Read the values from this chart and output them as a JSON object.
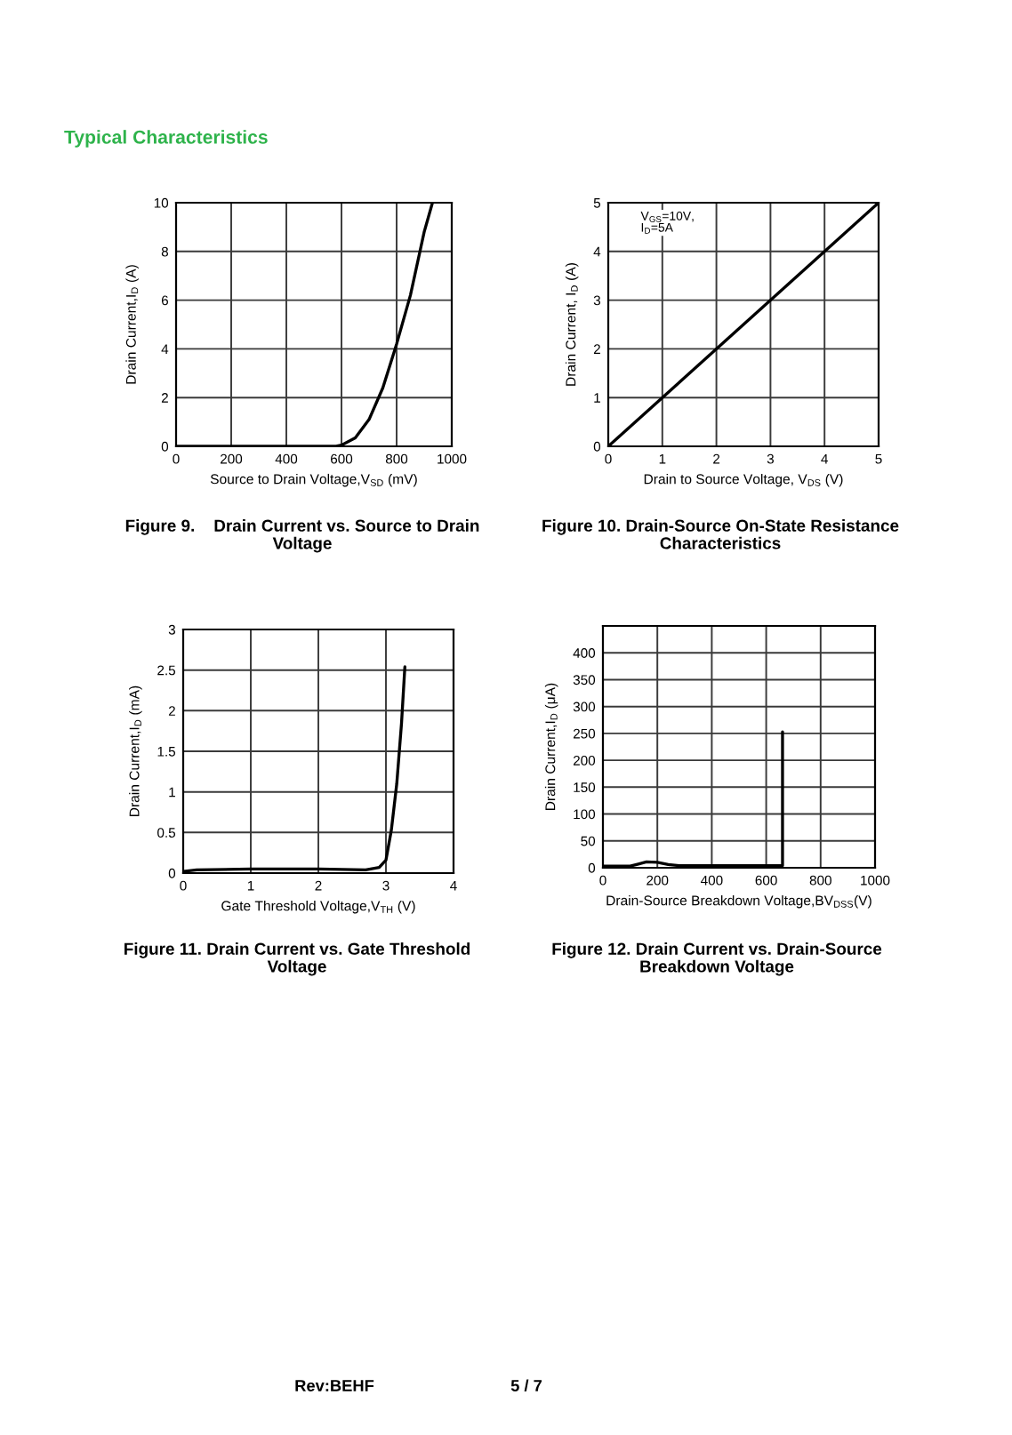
{
  "chart_data": [
    {
      "type": "line",
      "title": "Figure 9.    Drain Current vs. Source to Drain Voltage",
      "xlabel": "Source to Drain Voltage,V$_{SD}$ (mV)",
      "ylabel": "Drain Current,I$_{D}$ (A)",
      "annotations": [
        "Typical Characteristics"
      ],
      "x": [
        0,
        100,
        200,
        300,
        400,
        500,
        580,
        600,
        650,
        700,
        750,
        800,
        850,
        900,
        930
      ],
      "series": [
        {
          "color": "#000000",
          "values": [
            0,
            0,
            0,
            0,
            0,
            0,
            0,
            0.05,
            0.35,
            1.1,
            2.4,
            4.2,
            6.2,
            8.8,
            10
          ]
        }
      ],
      "xlim": [
        0,
        1000
      ],
      "ylim": [
        0,
        10
      ],
      "xticks": [
        0,
        200,
        400,
        600,
        800,
        1000
      ],
      "yticks": [
        0,
        2,
        4,
        6,
        8,
        10
      ],
      "grid": true
    },
    {
      "type": "line",
      "title": "Figure 10. Drain-Source On-State Resistance Characteristics",
      "xlabel": "Drain to Source Voltage, V$_{DS}$ (V)",
      "ylabel": "Drain Current, I$_{D}$ (A)",
      "annotations": [
        "V$_{GS}$=10V, I$_{D}$=5A"
      ],
      "x": [
        0,
        5
      ],
      "series": [
        {
          "color": "#000000",
          "values": [
            0,
            5
          ]
        }
      ],
      "xlim": [
        0,
        5
      ],
      "ylim": [
        0,
        5
      ],
      "xticks": [
        0,
        1,
        2,
        3,
        4,
        5
      ],
      "yticks": [
        0,
        1,
        2,
        3,
        4,
        5
      ],
      "grid": true
    },
    {
      "type": "line",
      "title": "Figure 11. Drain Current vs. Gate Threshold Voltage",
      "xlabel": "Gate Threshold Voltage,V$_{TH}$ (V)",
      "ylabel": "Drain Current,I$_{D}$ (mA)",
      "x": [
        0,
        0.2,
        1,
        2,
        2.7,
        2.9,
        3.0,
        3.08,
        3.16,
        3.23,
        3.28
      ],
      "series": [
        {
          "color": "#000000",
          "values": [
            0.02,
            0.04,
            0.05,
            0.05,
            0.04,
            0.07,
            0.16,
            0.53,
            1.1,
            1.84,
            2.54
          ]
        }
      ],
      "xlim": [
        0,
        4
      ],
      "ylim": [
        0,
        3
      ],
      "xticks": [
        0,
        1,
        2,
        3,
        4
      ],
      "yticks": [
        0,
        0.5,
        1,
        1.5,
        2,
        2.5,
        3
      ],
      "grid": true
    },
    {
      "type": "line",
      "title": "Figure 12. Drain Current vs. Drain-Source Breakdown Voltage",
      "xlabel": "Drain-Source Breakdown Voltage,BV$_{DSS}$(V)",
      "ylabel": "Drain Current,I$_{D}$ (μA)",
      "annotations": [
        "Rev:BEHF",
        "5 / 7"
      ],
      "x": [
        0,
        100,
        130,
        160,
        200,
        240,
        280,
        400,
        600,
        660,
        660
      ],
      "series": [
        {
          "color": "#000000",
          "values": [
            3,
            3,
            7,
            11,
            10,
            6,
            4,
            4,
            4,
            4,
            253
          ]
        }
      ],
      "xlim": [
        0,
        1000
      ],
      "ylim": [
        0,
        450
      ],
      "xticks": [
        0,
        200,
        400,
        600,
        800,
        1000
      ],
      "yticks": [
        0,
        50,
        100,
        150,
        200,
        250,
        300,
        350,
        400
      ],
      "grid": true
    }
  ]
}
